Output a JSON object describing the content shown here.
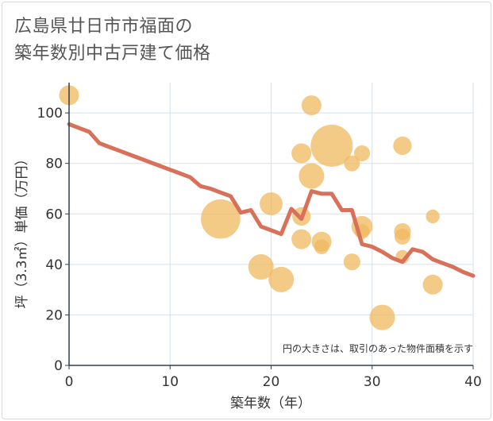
{
  "title_line1": "広島県廿日市市福面の",
  "title_line2": "築年数別中古戸建て価格",
  "chart_data": {
    "type": "scatter",
    "title": "広島県廿日市市福面の築年数別中古戸建て価格",
    "xlabel": "築年数（年）",
    "ylabel": "坪（3.3㎡）単価（万円）",
    "xlim": [
      0,
      40
    ],
    "ylim": [
      0,
      112
    ],
    "xticks": [
      0,
      10,
      20,
      30,
      40
    ],
    "yticks": [
      0,
      20,
      40,
      60,
      80,
      100
    ],
    "grid": true,
    "note": "円の大きさは、取引のあった物件面積を示す",
    "bubble_color": "#f0b85f",
    "line_color": "#d9705a",
    "bubbles": [
      {
        "x": 0,
        "y": 107,
        "size": 1
      },
      {
        "x": 15,
        "y": 58,
        "size": 6
      },
      {
        "x": 19,
        "y": 39,
        "size": 2
      },
      {
        "x": 20,
        "y": 64,
        "size": 1.5
      },
      {
        "x": 21,
        "y": 34,
        "size": 2
      },
      {
        "x": 23,
        "y": 84,
        "size": 1
      },
      {
        "x": 23,
        "y": 59,
        "size": 0.8
      },
      {
        "x": 23,
        "y": 50,
        "size": 1
      },
      {
        "x": 24,
        "y": 103,
        "size": 1
      },
      {
        "x": 24,
        "y": 75,
        "size": 2
      },
      {
        "x": 25,
        "y": 49,
        "size": 1
      },
      {
        "x": 25,
        "y": 47,
        "size": 0.4
      },
      {
        "x": 26,
        "y": 87,
        "size": 7
      },
      {
        "x": 28,
        "y": 80,
        "size": 0.5
      },
      {
        "x": 28,
        "y": 41,
        "size": 0.6
      },
      {
        "x": 29,
        "y": 84,
        "size": 0.5
      },
      {
        "x": 29,
        "y": 55,
        "size": 1.2
      },
      {
        "x": 29,
        "y": 53,
        "size": 0.4
      },
      {
        "x": 31,
        "y": 19,
        "size": 2
      },
      {
        "x": 33,
        "y": 87,
        "size": 0.8
      },
      {
        "x": 33,
        "y": 53,
        "size": 0.6
      },
      {
        "x": 33,
        "y": 51,
        "size": 0.5
      },
      {
        "x": 33,
        "y": 43,
        "size": 0.3
      },
      {
        "x": 36,
        "y": 59,
        "size": 0.3
      },
      {
        "x": 36,
        "y": 32,
        "size": 1
      }
    ],
    "trend_line": {
      "x": [
        0,
        1,
        2,
        3,
        4,
        5,
        6,
        7,
        8,
        9,
        10,
        11,
        12,
        13,
        14,
        15,
        16,
        17,
        18,
        19,
        20,
        21,
        22,
        23,
        24,
        25,
        26,
        27,
        28,
        29,
        30,
        31,
        32,
        33,
        34,
        35,
        36,
        37,
        38,
        39,
        40
      ],
      "y": [
        95.5,
        94,
        92.5,
        88,
        86.5,
        85,
        83.5,
        82,
        80.5,
        79,
        77.5,
        76,
        74.5,
        71,
        70,
        68.5,
        67,
        60.5,
        61.5,
        55,
        53.5,
        52,
        62,
        58,
        69,
        68,
        68,
        61.5,
        61.5,
        48,
        47,
        45,
        42.5,
        41,
        46,
        45,
        42,
        40.5,
        39,
        37,
        35.5
      ]
    }
  }
}
